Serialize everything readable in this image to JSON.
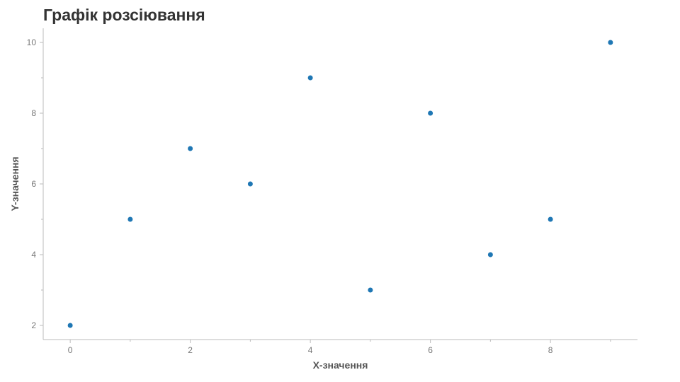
{
  "chart_data": {
    "type": "scatter",
    "title": "Графік розсіювання",
    "xlabel": "X-значення",
    "ylabel": "Y-значення",
    "x": [
      0,
      1,
      2,
      3,
      4,
      5,
      6,
      7,
      8,
      9
    ],
    "y": [
      2,
      5,
      7,
      6,
      9,
      3,
      8,
      4,
      5,
      10
    ],
    "xlim": [
      -0.45,
      9.45
    ],
    "ylim": [
      1.6,
      10.4
    ],
    "xticks": [
      0,
      2,
      4,
      6,
      8
    ],
    "yticks": [
      2,
      4,
      6,
      8,
      10
    ],
    "grid": false,
    "marker_color": "#1f77b4",
    "axis_color": "#bbbbbb",
    "tick_label_color": "#777777"
  }
}
